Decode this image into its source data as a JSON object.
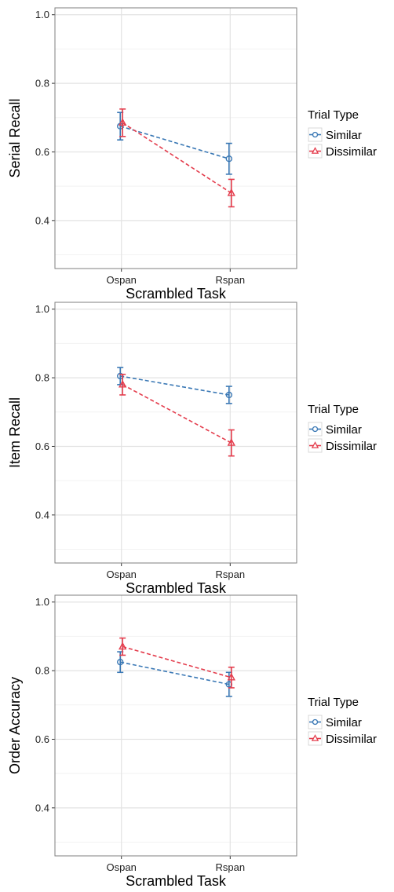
{
  "chart_data": [
    {
      "type": "line",
      "xlabel": "Scrambled Task",
      "ylabel": "Serial Recall",
      "categories": [
        "Ospan",
        "Rspan"
      ],
      "ylim": [
        0.26,
        1.02
      ],
      "yticks": [
        "0.4",
        "0.6",
        "0.8",
        "1.0"
      ],
      "grid": true,
      "legend": {
        "title": "Trial Type",
        "position": "right"
      },
      "series": [
        {
          "name": "Similar",
          "color": "#3a78b5",
          "marker": "circle",
          "values": [
            0.675,
            0.58
          ],
          "err_low": [
            0.635,
            0.535
          ],
          "err_high": [
            0.715,
            0.625
          ]
        },
        {
          "name": "Dissimilar",
          "color": "#e43d4d",
          "marker": "triangle",
          "values": [
            0.685,
            0.48
          ],
          "err_low": [
            0.645,
            0.44
          ],
          "err_high": [
            0.725,
            0.52
          ]
        }
      ]
    },
    {
      "type": "line",
      "xlabel": "Scrambled Task",
      "ylabel": "Item Recall",
      "categories": [
        "Ospan",
        "Rspan"
      ],
      "ylim": [
        0.26,
        1.02
      ],
      "yticks": [
        "0.4",
        "0.6",
        "0.8",
        "1.0"
      ],
      "grid": true,
      "legend": {
        "title": "Trial Type",
        "position": "right"
      },
      "series": [
        {
          "name": "Similar",
          "color": "#3a78b5",
          "marker": "circle",
          "values": [
            0.805,
            0.75
          ],
          "err_low": [
            0.78,
            0.725
          ],
          "err_high": [
            0.83,
            0.775
          ]
        },
        {
          "name": "Dissimilar",
          "color": "#e43d4d",
          "marker": "triangle",
          "values": [
            0.78,
            0.61
          ],
          "err_low": [
            0.75,
            0.572
          ],
          "err_high": [
            0.81,
            0.648
          ]
        }
      ]
    },
    {
      "type": "line",
      "xlabel": "Scrambled Task",
      "ylabel": "Order Accuracy",
      "categories": [
        "Ospan",
        "Rspan"
      ],
      "ylim": [
        0.26,
        1.02
      ],
      "yticks": [
        "0.4",
        "0.6",
        "0.8",
        "1.0"
      ],
      "grid": true,
      "legend": {
        "title": "Trial Type",
        "position": "right"
      },
      "series": [
        {
          "name": "Similar",
          "color": "#3a78b5",
          "marker": "circle",
          "values": [
            0.825,
            0.76
          ],
          "err_low": [
            0.795,
            0.725
          ],
          "err_high": [
            0.855,
            0.795
          ]
        },
        {
          "name": "Dissimilar",
          "color": "#e43d4d",
          "marker": "triangle",
          "values": [
            0.87,
            0.78
          ],
          "err_low": [
            0.845,
            0.75
          ],
          "err_high": [
            0.895,
            0.81
          ]
        }
      ]
    }
  ]
}
